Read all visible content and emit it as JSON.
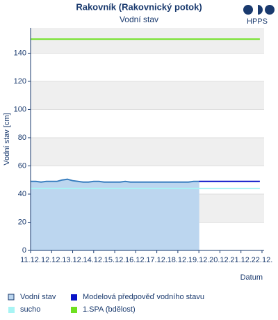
{
  "chart_data": {
    "type": "line",
    "title": "Rakovník (Rakovnický potok)",
    "subtitle": "Vodní stav",
    "logo": "HPPS",
    "y_label": "Vodní stav [cm]",
    "x_label": "Datum",
    "ylim": [
      0,
      158
    ],
    "yticks": [
      0,
      20,
      40,
      60,
      80,
      100,
      120,
      140
    ],
    "xlim": [
      11,
      22.1
    ],
    "xticks": [
      {
        "value": 11,
        "label": "11.12."
      },
      {
        "value": 12,
        "label": "12.12."
      },
      {
        "value": 13,
        "label": "13.12."
      },
      {
        "value": 14,
        "label": "14.12."
      },
      {
        "value": 15,
        "label": "15.12."
      },
      {
        "value": 16,
        "label": "16.12."
      },
      {
        "value": 17,
        "label": "17.12."
      },
      {
        "value": 18,
        "label": "18.12."
      },
      {
        "value": 19,
        "label": "19.12."
      },
      {
        "value": 20,
        "label": "20.12."
      },
      {
        "value": 21,
        "label": "21.12."
      },
      {
        "value": 22,
        "label": "22.12."
      }
    ],
    "series": [
      {
        "name": "Vodní stav",
        "color": "#3a7fc0",
        "fill": "#bcd6ef",
        "marker": "outline",
        "x": [
          11,
          11.25,
          11.5,
          11.75,
          12,
          12.25,
          12.5,
          12.75,
          13,
          13.25,
          13.5,
          13.75,
          14,
          14.25,
          14.5,
          14.75,
          15,
          15.25,
          15.5,
          15.75,
          16,
          16.25,
          16.5,
          16.75,
          17,
          17.25,
          17.5,
          17.75,
          18,
          18.25,
          18.5,
          18.75,
          19
        ],
        "values": [
          49,
          49,
          48.5,
          49,
          49,
          49,
          50,
          50.5,
          49.5,
          49,
          48.5,
          48.5,
          49,
          49,
          48.5,
          48.5,
          48.5,
          48.5,
          49,
          48.5,
          48.5,
          48.5,
          48.5,
          48.5,
          48.5,
          48.5,
          48.5,
          48.5,
          48.5,
          48.5,
          48.5,
          49,
          49
        ]
      },
      {
        "name": "Modelová předpověď vodního stavu",
        "color": "#0a14c8",
        "x": [
          19,
          21.9
        ],
        "values": [
          49,
          49
        ]
      },
      {
        "name": "sucho",
        "color": "#a8f4f4",
        "x": [
          11,
          21.9
        ],
        "values": [
          44,
          44
        ]
      },
      {
        "name": "1.SPA (bdělost)",
        "color": "#6ee020",
        "x": [
          11,
          21.9
        ],
        "values": [
          150,
          150
        ]
      }
    ]
  }
}
